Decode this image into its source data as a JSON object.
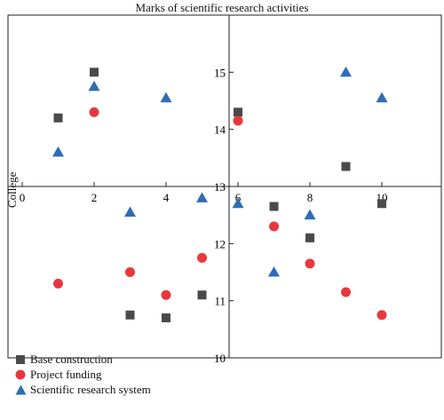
{
  "chart_data": {
    "type": "scatter",
    "title": "Marks of scientific research activities",
    "xlabel": "",
    "ylabel": "College",
    "xlim": [
      0,
      11.2
    ],
    "ylim": [
      10,
      16
    ],
    "x_origin_value": 13,
    "x_ticks": [
      0,
      2,
      4,
      6,
      8,
      10
    ],
    "y_ticks": [
      10,
      11,
      12,
      13,
      14,
      15
    ],
    "grid": false,
    "legend_position": "bottom-left",
    "series": [
      {
        "name": "Base construction",
        "marker": "square",
        "color": "#4a4a4a",
        "x": [
          1,
          2,
          3,
          4,
          5,
          6,
          7,
          8,
          9,
          10
        ],
        "y": [
          14.2,
          15.0,
          10.75,
          10.7,
          11.1,
          14.3,
          12.65,
          12.1,
          13.35,
          12.7
        ]
      },
      {
        "name": "Project funding",
        "marker": "circle",
        "color": "#e8383d",
        "x": [
          1,
          2,
          3,
          4,
          5,
          6,
          7,
          8,
          9,
          10
        ],
        "y": [
          11.3,
          14.3,
          11.5,
          11.1,
          11.75,
          14.15,
          12.3,
          11.65,
          11.15,
          10.75
        ]
      },
      {
        "name": "Scientific research system",
        "marker": "triangle",
        "color": "#2e6db5",
        "x": [
          1,
          2,
          3,
          4,
          5,
          6,
          7,
          8,
          9,
          10
        ],
        "y": [
          13.6,
          14.75,
          12.55,
          14.55,
          12.8,
          12.7,
          11.5,
          12.5,
          15.0,
          14.55
        ]
      }
    ]
  }
}
